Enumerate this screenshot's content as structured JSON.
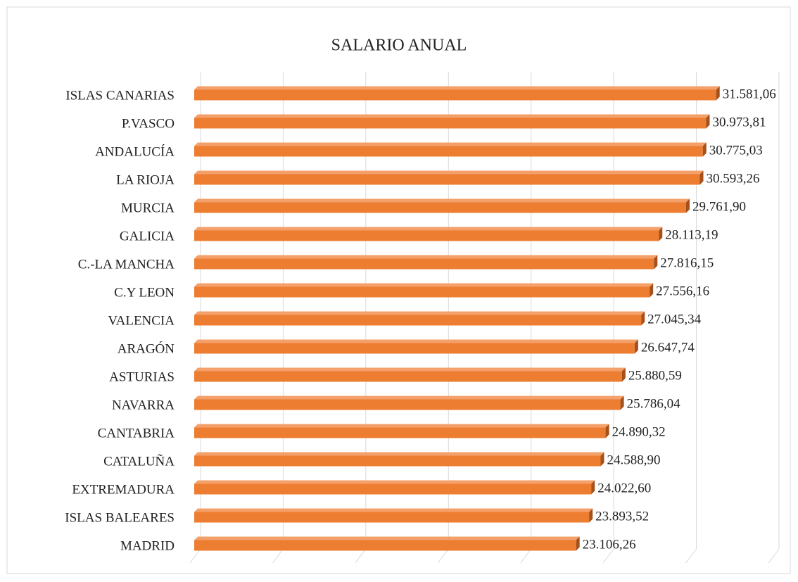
{
  "chart_data": {
    "type": "bar",
    "orientation": "horizontal",
    "title": "SALARIO ANUAL",
    "categories": [
      "ISLAS CANARIAS",
      "P.VASCO",
      "ANDALUCÍA",
      "LA RIOJA",
      "MURCIA",
      "GALICIA",
      "C.-LA MANCHA",
      "C.Y LEON",
      "VALENCIA",
      "ARAGÓN",
      "ASTURIAS",
      "NAVARRA",
      "CANTABRIA",
      "CATALUÑA",
      "EXTREMADURA",
      "ISLAS BALEARES",
      "MADRID"
    ],
    "values": [
      31581.06,
      30973.81,
      30775.03,
      30593.26,
      29761.9,
      28113.19,
      27816.15,
      27556.16,
      27045.34,
      26647.74,
      25880.59,
      25786.04,
      24890.32,
      24588.9,
      24022.6,
      23893.52,
      23106.26
    ],
    "value_labels": [
      "31.581,06",
      "30.973,81",
      "30.775,03",
      "30.593,26",
      "29.761,90",
      "28.113,19",
      "27.816,15",
      "27.556,16",
      "27.045,34",
      "26.647,74",
      "25.880,59",
      "25.786,04",
      "24.890,32",
      "24.588,90",
      "24.022,60",
      "23.893,52",
      "23.106,26"
    ],
    "color": "#ed7d31",
    "xlim": [
      0,
      35000
    ],
    "xticks": [
      0,
      5000,
      10000,
      15000,
      20000,
      25000,
      30000,
      35000
    ],
    "grid": true
  }
}
